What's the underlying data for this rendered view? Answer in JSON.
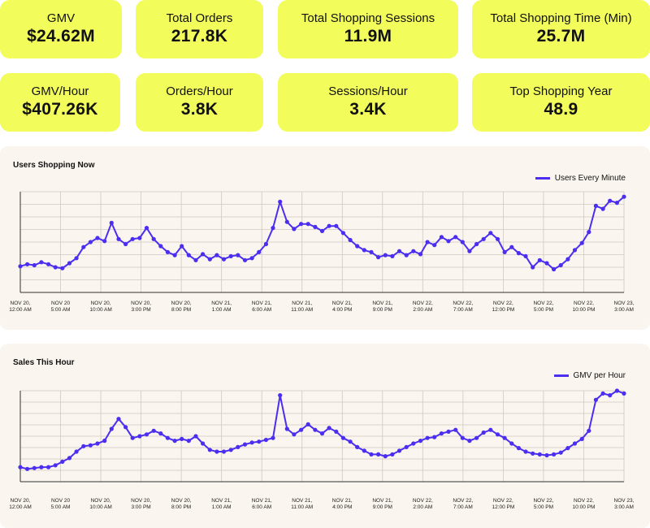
{
  "colors": {
    "kpi_bg": "#f2fc5a",
    "panel_bg": "#faf5ee",
    "series": "#4b2ef0"
  },
  "kpis": [
    {
      "label": "GMV",
      "value": "$24.62M"
    },
    {
      "label": "Total Orders",
      "value": "217.8K"
    },
    {
      "label": "Total Shopping Sessions",
      "value": "11.9M"
    },
    {
      "label": "Total Shopping Time (Min)",
      "value": "25.7M"
    },
    {
      "label": "GMV/Hour",
      "value": "$407.26K"
    },
    {
      "label": "Orders/Hour",
      "value": "3.8K"
    },
    {
      "label": "Sessions/Hour",
      "value": "3.4K"
    },
    {
      "label": "Top Shopping Year",
      "value": "48.9"
    }
  ],
  "chart_data": [
    {
      "type": "line",
      "title": "Users Shopping Now",
      "legend": "top-right",
      "grid": true,
      "ylim": [
        0,
        100
      ],
      "x_tick_labels": [
        [
          "NOV 20,",
          "12:00 AM"
        ],
        [
          "NOV 20",
          "5:00 AM"
        ],
        [
          "NOV 20,",
          "10:00 AM"
        ],
        [
          "NOV 20,",
          "3:00 PM"
        ],
        [
          "NOV 20,",
          "8:00 PM"
        ],
        [
          "NOV 21,",
          "1:00 AM"
        ],
        [
          "NOV 21,",
          "6:00 AM"
        ],
        [
          "NOV 21,",
          "11:00 AM"
        ],
        [
          "NOV 21,",
          "4:00 PM"
        ],
        [
          "NOV 21,",
          "9:00 PM"
        ],
        [
          "NOV 22,",
          "2:00 AM"
        ],
        [
          "NOV 22,",
          "7:00 AM"
        ],
        [
          "NOV 22,",
          "12:00 PM"
        ],
        [
          "NOV 22,",
          "5:00 PM"
        ],
        [
          "NOV 22,",
          "10:00 PM"
        ],
        [
          "NOV 23,",
          "3:00 AM"
        ]
      ],
      "series": [
        {
          "name": "Users Every Minute",
          "values": [
            26,
            28,
            27,
            30,
            28,
            25,
            24,
            29,
            34,
            45,
            50,
            54,
            51,
            69,
            53,
            48,
            53,
            54,
            64,
            53,
            46,
            40,
            37,
            46,
            37,
            32,
            38,
            33,
            37,
            33,
            36,
            37,
            32,
            34,
            40,
            48,
            64,
            90,
            70,
            63,
            68,
            68,
            65,
            61,
            66,
            66,
            59,
            52,
            46,
            42,
            40,
            35,
            37,
            36,
            41,
            37,
            41,
            38,
            50,
            47,
            55,
            51,
            55,
            50,
            41,
            48,
            53,
            59,
            53,
            40,
            45,
            39,
            36,
            25,
            32,
            29,
            23,
            27,
            33,
            42,
            49,
            60,
            86,
            83,
            91,
            89,
            95
          ]
        }
      ]
    },
    {
      "type": "line",
      "title": "Sales This Hour",
      "legend": "top-right",
      "grid": true,
      "ylim": [
        0,
        100
      ],
      "x_tick_labels": [
        [
          "NOV 20,",
          "12:00 AM"
        ],
        [
          "NOV 20",
          "5:00 AM"
        ],
        [
          "NOV 20,",
          "10:00 AM"
        ],
        [
          "NOV 20,",
          "3:00 PM"
        ],
        [
          "NOV 20,",
          "8:00 PM"
        ],
        [
          "NOV 21,",
          "1:00 AM"
        ],
        [
          "NOV 21,",
          "6:00 AM"
        ],
        [
          "NOV 21,",
          "11:00 AM"
        ],
        [
          "NOV 21,",
          "4:00 PM"
        ],
        [
          "NOV 21,",
          "9:00 PM"
        ],
        [
          "NOV 22,",
          "2:00 AM"
        ],
        [
          "NOV 22,",
          "7:00 AM"
        ],
        [
          "NOV 22,",
          "12:00 PM"
        ],
        [
          "NOV 22,",
          "5:00 PM"
        ],
        [
          "NOV 22,",
          "10:00 PM"
        ],
        [
          "NOV 23,",
          "3:00 AM"
        ]
      ],
      "series": [
        {
          "name": "GMV per Hour",
          "values": [
            16,
            14,
            15,
            16,
            16,
            18,
            22,
            26,
            33,
            39,
            40,
            42,
            45,
            58,
            69,
            60,
            48,
            50,
            52,
            56,
            53,
            48,
            45,
            47,
            45,
            50,
            42,
            35,
            33,
            33,
            35,
            38,
            41,
            43,
            44,
            46,
            48,
            95,
            58,
            52,
            57,
            63,
            57,
            53,
            59,
            55,
            48,
            44,
            38,
            34,
            30,
            30,
            28,
            30,
            34,
            38,
            42,
            45,
            48,
            49,
            53,
            55,
            57,
            48,
            45,
            48,
            54,
            57,
            52,
            48,
            42,
            37,
            33,
            31,
            30,
            29,
            30,
            32,
            37,
            42,
            47,
            56,
            90,
            97,
            95,
            100,
            97
          ]
        }
      ]
    }
  ]
}
